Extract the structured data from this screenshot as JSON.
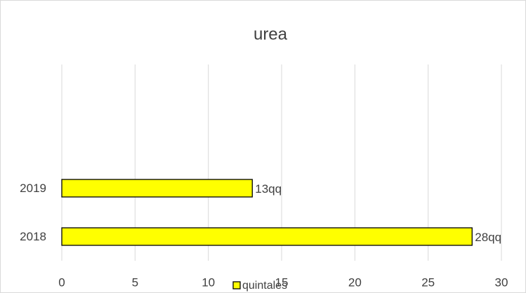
{
  "chart_data": {
    "type": "bar",
    "orientation": "horizontal",
    "title": "urea",
    "categories": [
      "2018",
      "2019"
    ],
    "series": [
      {
        "name": "quintales",
        "color": "#ffff00",
        "values": [
          28,
          13
        ],
        "value_labels": [
          "28qq",
          "13qq"
        ]
      }
    ],
    "xlim": [
      0,
      30
    ],
    "xticks": [
      0,
      5,
      10,
      15,
      20,
      25,
      30
    ],
    "grid": true,
    "legend": "bottom"
  }
}
